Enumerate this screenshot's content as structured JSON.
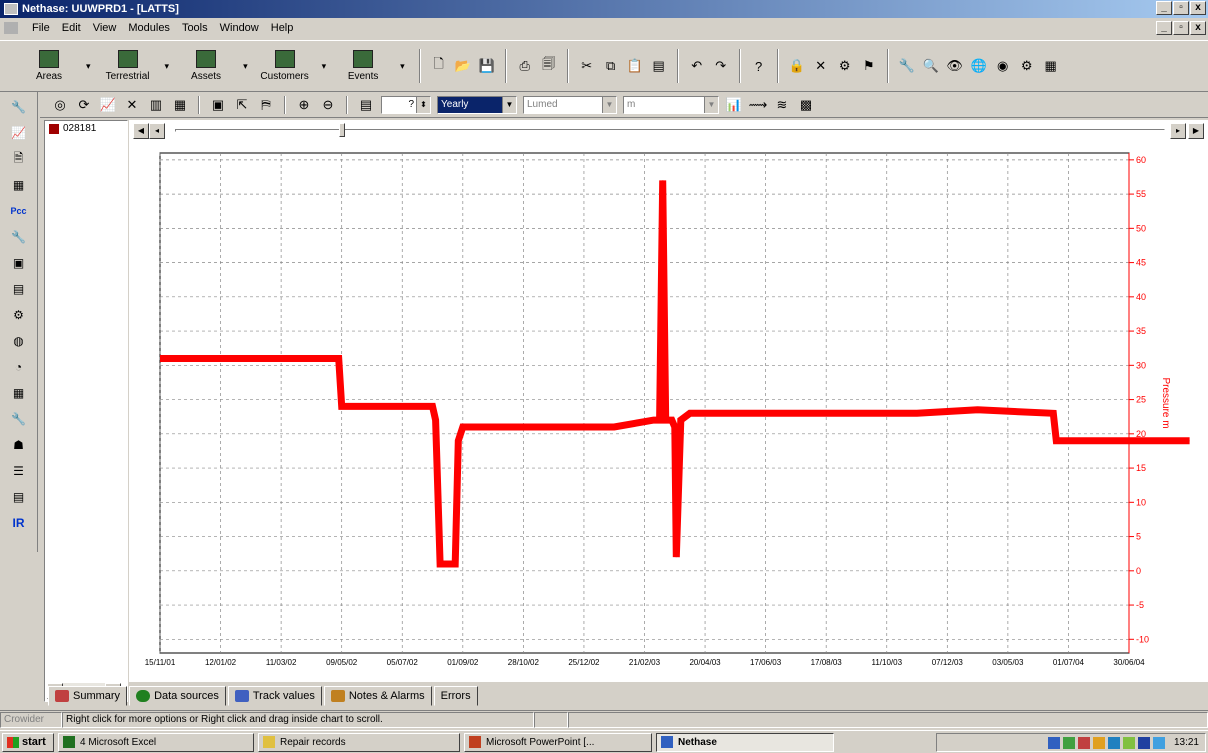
{
  "window": {
    "title": "Nethase: UUWPRD1 - [LATTS]"
  },
  "menu": [
    "File",
    "Edit",
    "View",
    "Modules",
    "Tools",
    "Window",
    "Help"
  ],
  "toolbar1": {
    "big_buttons": [
      "Areas",
      "Terrestrial",
      "Assets",
      "Customers",
      "Events"
    ]
  },
  "toolbar2": {
    "interval_value": "?",
    "period_select": "Yearly",
    "aggregate_select": "Lumed",
    "units_select": "m"
  },
  "tree": {
    "item_label": "028181"
  },
  "tabs": [
    "Summary",
    "Data sources",
    "Track values",
    "Notes & Alarms",
    "Errors"
  ],
  "status": {
    "left": "Crowider",
    "message": "Right click for more options or Right click and drag inside chart to scroll."
  },
  "taskbar": {
    "start": "start",
    "items": [
      "4 Microsoft Excel",
      "Repair records",
      "Microsoft PowerPoint [...",
      "Nethase"
    ],
    "clock": "13:21"
  },
  "colors": {
    "series": "#ff0000",
    "titlebar": "#0a246a"
  },
  "chart_data": {
    "type": "line",
    "x_tick_labels": [
      "15/11/01",
      "12/01/02",
      "11/03/02",
      "09/05/02",
      "05/07/02",
      "01/09/02",
      "28/10/02",
      "25/12/02",
      "21/02/03",
      "20/04/03",
      "17/06/03",
      "17/08/03",
      "11/10/03",
      "07/12/03",
      "03/05/03",
      "01/07/04",
      "30/06/04"
    ],
    "ylabel": "Pressure m",
    "y_ticks": [
      -10,
      -5,
      0,
      5,
      10,
      15,
      20,
      25,
      30,
      35,
      40,
      45,
      50,
      55,
      60
    ],
    "ylim": [
      -12,
      61
    ],
    "grid": true,
    "series": [
      {
        "x": [
          0,
          3,
          4,
          5.9,
          6.0,
          9.0,
          9.1,
          9.25,
          9.35,
          9.5,
          9.75,
          9.85,
          10.0,
          15.0,
          16.3,
          16.5,
          16.6,
          16.7,
          16.9,
          17.0,
          17.05,
          17.2,
          17.5,
          19.0,
          20.0,
          25.0,
          27.0,
          29.5,
          29.6,
          34.0
        ],
        "y": [
          31,
          31,
          31,
          31,
          24,
          24,
          22,
          1,
          1,
          1,
          1,
          19,
          21,
          21,
          22,
          22,
          57,
          22,
          22,
          21,
          2,
          22,
          23,
          23,
          23,
          23,
          23.5,
          23,
          19,
          19
        ]
      }
    ]
  }
}
